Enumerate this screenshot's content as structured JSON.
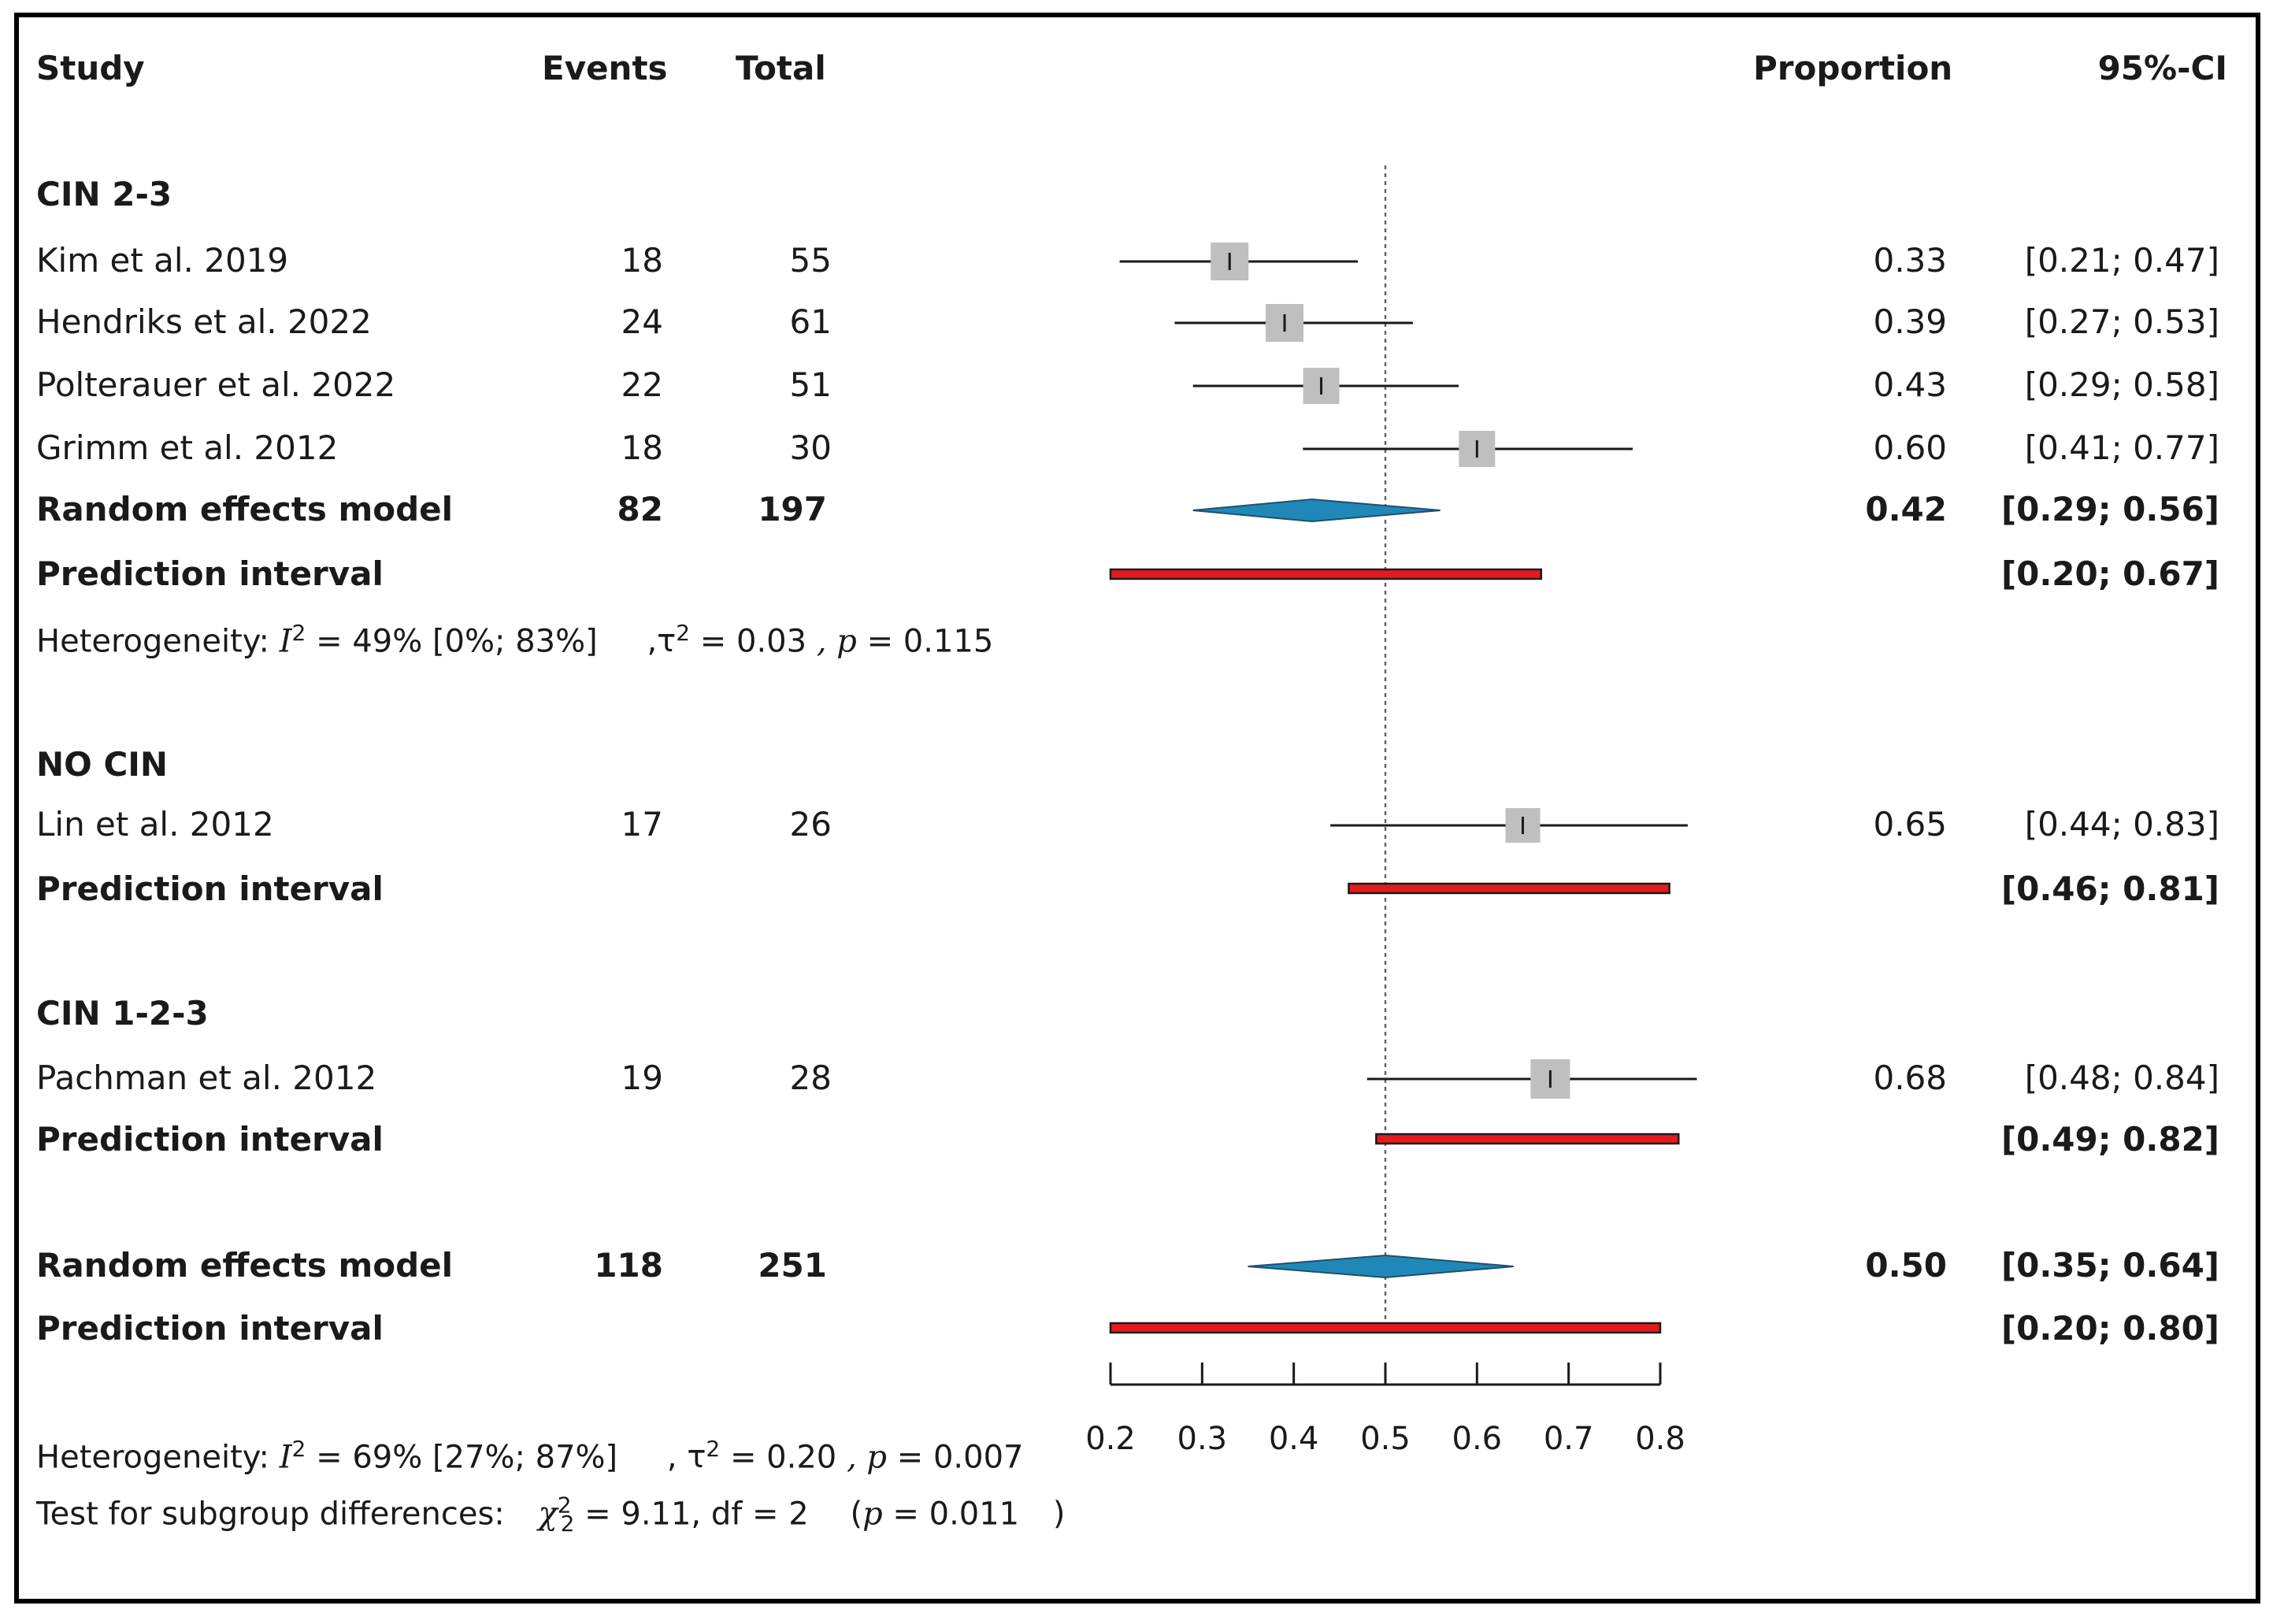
{
  "colors": {
    "square": "#bfbfbf",
    "diamond": "#1f88b9",
    "diamond_stroke": "#1f4f6b",
    "pred_fill": "#e41a1c",
    "pred_stroke": "#1a1a1a",
    "line": "#1a1a1a",
    "refline": "#666666"
  },
  "headers": {
    "study": "Study",
    "events": "Events",
    "total": "Total",
    "proportion": "Proportion",
    "ci": "95%-CI"
  },
  "groups": [
    {
      "label": "CIN 2-3",
      "studies": [
        {
          "study": "Kim et al. 2019",
          "events": "18",
          "total": "55",
          "prop": "0.33",
          "ci": "[0.21; 0.47]"
        },
        {
          "study": "Hendriks et al. 2022",
          "events": "24",
          "total": "61",
          "prop": "0.39",
          "ci": "[0.27; 0.53]"
        },
        {
          "study": "Polterauer et al. 2022",
          "events": "22",
          "total": "51",
          "prop": "0.43",
          "ci": "[0.29; 0.58]"
        },
        {
          "study": "Grimm et al. 2012",
          "events": "18",
          "total": "30",
          "prop": "0.60",
          "ci": "[0.41; 0.77]"
        }
      ],
      "random": {
        "label": "Random effects model",
        "events": "82",
        "total": "197",
        "prop": "0.42",
        "ci": "[0.29; 0.56]"
      },
      "prediction": {
        "label": "Prediction interval",
        "ci": "[0.20; 0.67]"
      },
      "heterogeneity": {
        "prefix": "Heterogeneity:",
        "i2_sym": "I",
        "i2_exp": "2",
        "i2": "= 49% [0%; 83%]",
        "tau_sym": ",τ",
        "tau_exp": "2",
        "tau": "= 0.03",
        "p_sym": ", p",
        "p": "= 0.115"
      }
    },
    {
      "label": "NO CIN",
      "studies": [
        {
          "study": "Lin et al. 2012",
          "events": "17",
          "total": "26",
          "prop": "0.65",
          "ci": "[0.44; 0.83]"
        }
      ],
      "prediction": {
        "label": "Prediction interval",
        "ci": "[0.46; 0.81]"
      }
    },
    {
      "label": "CIN 1-2-3",
      "studies": [
        {
          "study": "Pachman et al. 2012",
          "events": "19",
          "total": "28",
          "prop": "0.68",
          "ci": "[0.48; 0.84]"
        }
      ],
      "prediction": {
        "label": "Prediction interval",
        "ci": "[0.49; 0.82]"
      }
    }
  ],
  "overall": {
    "random": {
      "label": "Random effects model",
      "events": "118",
      "total": "251",
      "prop": "0.50",
      "ci": "[0.35; 0.64]"
    },
    "prediction": {
      "label": "Prediction interval",
      "ci": "[0.20; 0.80]"
    },
    "heterogeneity": {
      "prefix": "Heterogeneity:",
      "i2_sym": "I",
      "i2_exp": "2",
      "i2": "= 69% [27%; 87%]",
      "tau_sym": ", τ",
      "tau_exp": "2",
      "tau": "= 0.20",
      "p_sym": ", p",
      "p": "= 0.007"
    },
    "subgroup": {
      "prefix": "Test for subgroup differences:",
      "chi_sym": "χ",
      "chi_exp": "2",
      "chi_sub": "2",
      "chi": "= 9.11, df = 2",
      "p_open": "(",
      "p_sym": "p",
      "p": "= 0.011",
      "p_close": ")"
    }
  },
  "chart_data": {
    "type": "forest",
    "title": "",
    "xlabel": "",
    "xlim": [
      0.2,
      0.8
    ],
    "ticks": [
      "0.2",
      "0.3",
      "0.4",
      "0.5",
      "0.6",
      "0.7",
      "0.8"
    ],
    "tick_values": [
      0.2,
      0.3,
      0.4,
      0.5,
      0.6,
      0.7,
      0.8
    ],
    "reference_line": 0.5,
    "studies": [
      {
        "name": "Kim et al. 2019",
        "est": 0.33,
        "lo": 0.21,
        "hi": 0.47
      },
      {
        "name": "Hendriks et al. 2022",
        "est": 0.39,
        "lo": 0.27,
        "hi": 0.53
      },
      {
        "name": "Polterauer et al. 2022",
        "est": 0.43,
        "lo": 0.29,
        "hi": 0.58
      },
      {
        "name": "Grimm et al. 2012",
        "est": 0.6,
        "lo": 0.41,
        "hi": 0.77
      },
      {
        "name": "Lin et al. 2012",
        "est": 0.65,
        "lo": 0.44,
        "hi": 0.83
      },
      {
        "name": "Pachman et al. 2012",
        "est": 0.68,
        "lo": 0.48,
        "hi": 0.84
      }
    ],
    "summaries": [
      {
        "name": "CIN 2-3 random effects",
        "est": 0.42,
        "lo": 0.29,
        "hi": 0.56
      },
      {
        "name": "Overall random effects",
        "est": 0.5,
        "lo": 0.35,
        "hi": 0.64
      }
    ],
    "prediction_intervals": [
      {
        "name": "CIN 2-3",
        "lo": 0.2,
        "hi": 0.67
      },
      {
        "name": "NO CIN",
        "lo": 0.46,
        "hi": 0.81
      },
      {
        "name": "CIN 1-2-3",
        "lo": 0.49,
        "hi": 0.82
      },
      {
        "name": "Overall",
        "lo": 0.2,
        "hi": 0.8
      }
    ]
  }
}
